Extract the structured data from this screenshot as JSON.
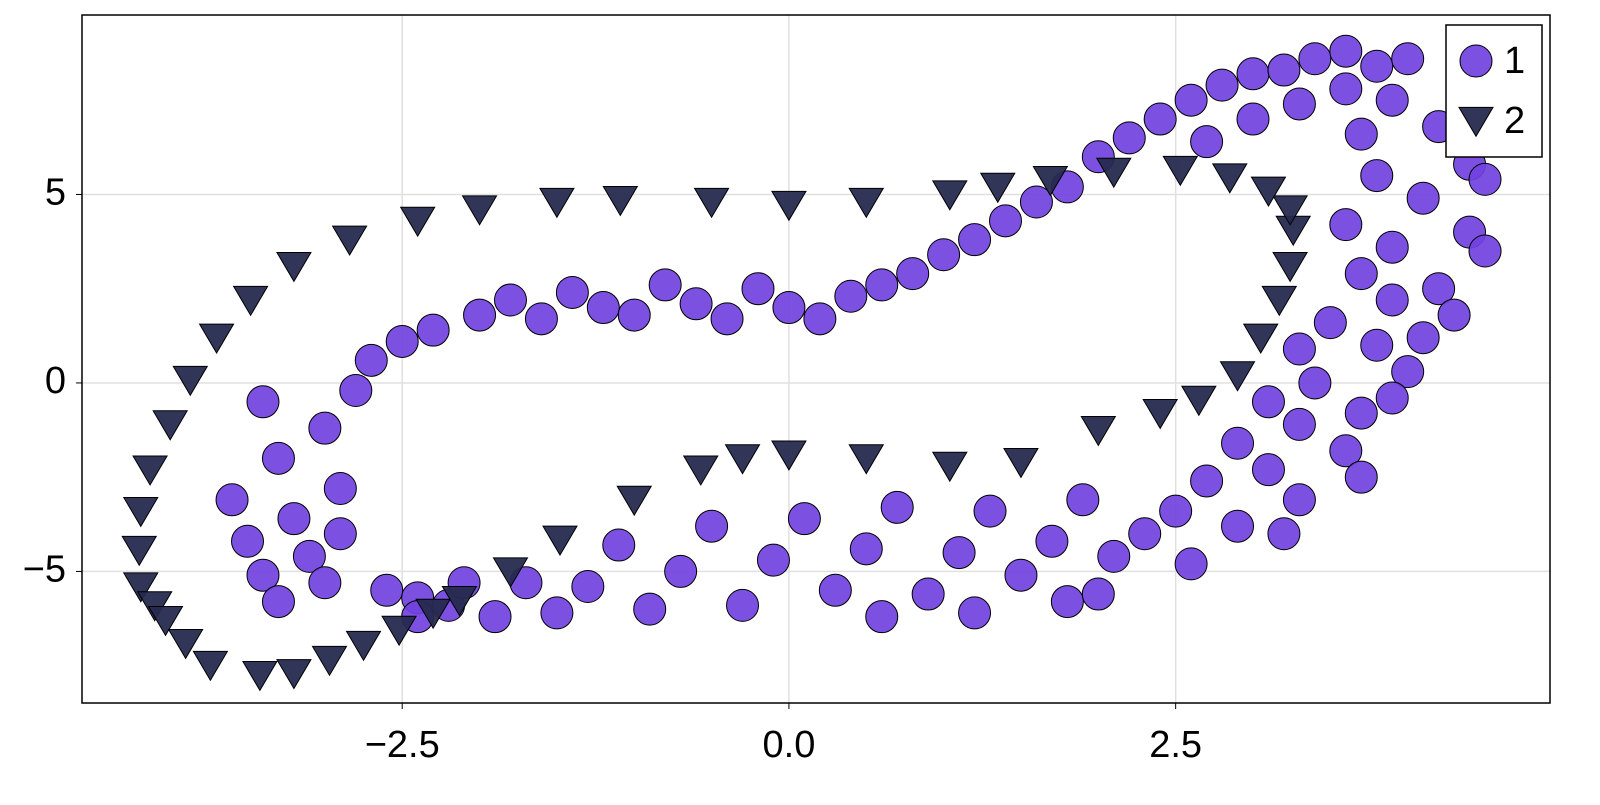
{
  "chart_data": {
    "type": "scatter",
    "xlim": [
      -4.57,
      4.92
    ],
    "ylim": [
      -8.49,
      9.76
    ],
    "xticks": [
      {
        "value": -2.5,
        "label": "−2.5"
      },
      {
        "value": 0,
        "label": "0.0"
      },
      {
        "value": 2.5,
        "label": "2.5"
      }
    ],
    "yticks": [
      {
        "value": -5,
        "label": "−5"
      },
      0,
      5
    ],
    "grid": true,
    "legend": "top-right",
    "series": [
      {
        "name": "1",
        "color": "#7142e0",
        "marker": "circle",
        "x": [
          -3.6,
          -3.5,
          -3.4,
          -3.3,
          -3.2,
          -3.1,
          -3.0,
          -2.9,
          -3.4,
          -3.0,
          -2.8,
          -2.7,
          -2.6,
          -2.4,
          -2.2,
          -3.3,
          -2.9,
          -2.5,
          -2.3,
          -2.0,
          -1.8,
          -1.6,
          -1.4,
          -1.2,
          -1.0,
          -0.8,
          -0.6,
          -0.4,
          -0.2,
          0,
          0.2,
          0.4,
          0.6,
          0.8,
          1.0,
          1.2,
          1.4,
          1.6,
          1.8,
          2.0,
          2.2,
          2.4,
          2.6,
          2.8,
          3.0,
          3.2,
          3.4,
          3.6,
          3.8,
          4.0,
          2.7,
          3.0,
          3.3,
          3.6,
          3.9,
          4.2,
          3.7,
          4.4,
          3.8,
          4.5,
          4.1,
          3.6,
          4.4,
          3.9,
          4.5,
          3.7,
          4.2,
          3.9,
          4.3,
          3.5,
          4.1,
          3.8,
          3.3,
          4.0,
          3.4,
          3.9,
          3.1,
          3.7,
          3.3,
          2.9,
          3.6,
          3.1,
          3.7,
          2.7,
          3.3,
          2.5,
          2.9,
          3.2,
          2.3,
          2.6,
          2.1,
          1.9,
          1.7,
          1.5,
          1.3,
          1.1,
          0.9,
          0.7,
          0.5,
          0.3,
          0.1,
          -0.1,
          -0.3,
          -0.5,
          -0.7,
          -0.9,
          -1.1,
          -1.3,
          -1.5,
          -1.7,
          -1.9,
          1.8,
          2.0,
          1.2,
          0.6,
          -2.1,
          -2.4
        ],
        "y": [
          -3.1,
          -4.2,
          -5.1,
          -2.0,
          -3.6,
          -4.6,
          -1.2,
          -2.8,
          -0.5,
          -5.3,
          -0.2,
          0.6,
          -5.5,
          -5.7,
          -5.9,
          -5.8,
          -4.0,
          1.1,
          1.4,
          1.8,
          2.2,
          1.7,
          2.4,
          2.0,
          1.8,
          2.6,
          2.1,
          1.7,
          2.5,
          2.0,
          1.7,
          2.3,
          2.6,
          2.9,
          3.4,
          3.8,
          4.3,
          4.8,
          5.2,
          6.0,
          6.5,
          7.0,
          7.5,
          7.9,
          8.2,
          8.3,
          8.6,
          8.8,
          8.4,
          8.6,
          6.4,
          7.0,
          7.4,
          7.8,
          7.5,
          6.8,
          6.6,
          5.8,
          5.5,
          5.4,
          4.9,
          4.2,
          4.0,
          3.6,
          3.5,
          2.9,
          2.5,
          2.2,
          1.8,
          1.6,
          1.2,
          1.0,
          0.9,
          0.3,
          0.0,
          -0.4,
          -0.5,
          -0.8,
          -1.1,
          -1.6,
          -1.8,
          -2.3,
          -2.5,
          -2.6,
          -3.1,
          -3.4,
          -3.8,
          -4.0,
          -4.0,
          -4.8,
          -4.6,
          -3.1,
          -4.2,
          -5.1,
          -3.4,
          -4.5,
          -5.6,
          -3.3,
          -4.4,
          -5.5,
          -3.6,
          -4.7,
          -5.9,
          -3.8,
          -5.0,
          -6.0,
          -4.3,
          -5.4,
          -6.1,
          -5.3,
          -6.2,
          -5.8,
          -5.6,
          -6.1,
          -6.2,
          -5.3,
          -6.2
        ]
      },
      {
        "name": "2",
        "color": "#262a4f",
        "marker": "triangle-down",
        "x": [
          -2.52,
          -2.3,
          -2.13,
          -1.8,
          -1.48,
          -1.0,
          -0.57,
          -0.3,
          0,
          0.5,
          1.04,
          1.5,
          2.0,
          2.4,
          2.65,
          2.9,
          3.05,
          3.17,
          3.24,
          3.26,
          3.24,
          3.1,
          2.85,
          2.53,
          2.1,
          1.69,
          1.35,
          1.04,
          0.5,
          0,
          -0.5,
          -1.09,
          -1.5,
          -2.0,
          -2.4,
          -2.84,
          -3.2,
          -3.48,
          -3.7,
          -3.87,
          -4.0,
          -4.13,
          -4.19,
          -4.2,
          -4.19,
          -4.1,
          -4.03,
          -3.9,
          -3.74,
          -3.42,
          -3.2,
          -2.97,
          -2.75
        ],
        "y": [
          -6.55,
          -6.1,
          -5.76,
          -5.0,
          -4.16,
          -3.1,
          -2.3,
          -2.0,
          -1.9,
          -2.0,
          -2.2,
          -2.1,
          -1.25,
          -0.8,
          -0.45,
          0.2,
          1.2,
          2.2,
          3.1,
          4.06,
          4.6,
          5.1,
          5.45,
          5.65,
          5.6,
          5.38,
          5.2,
          5.0,
          4.8,
          4.72,
          4.8,
          4.85,
          4.8,
          4.6,
          4.3,
          3.8,
          3.1,
          2.2,
          1.2,
          0.08,
          -1.1,
          -2.3,
          -3.4,
          -4.43,
          -5.4,
          -5.9,
          -6.29,
          -6.9,
          -7.48,
          -7.75,
          -7.7,
          -7.35,
          -6.95
        ]
      }
    ]
  }
}
